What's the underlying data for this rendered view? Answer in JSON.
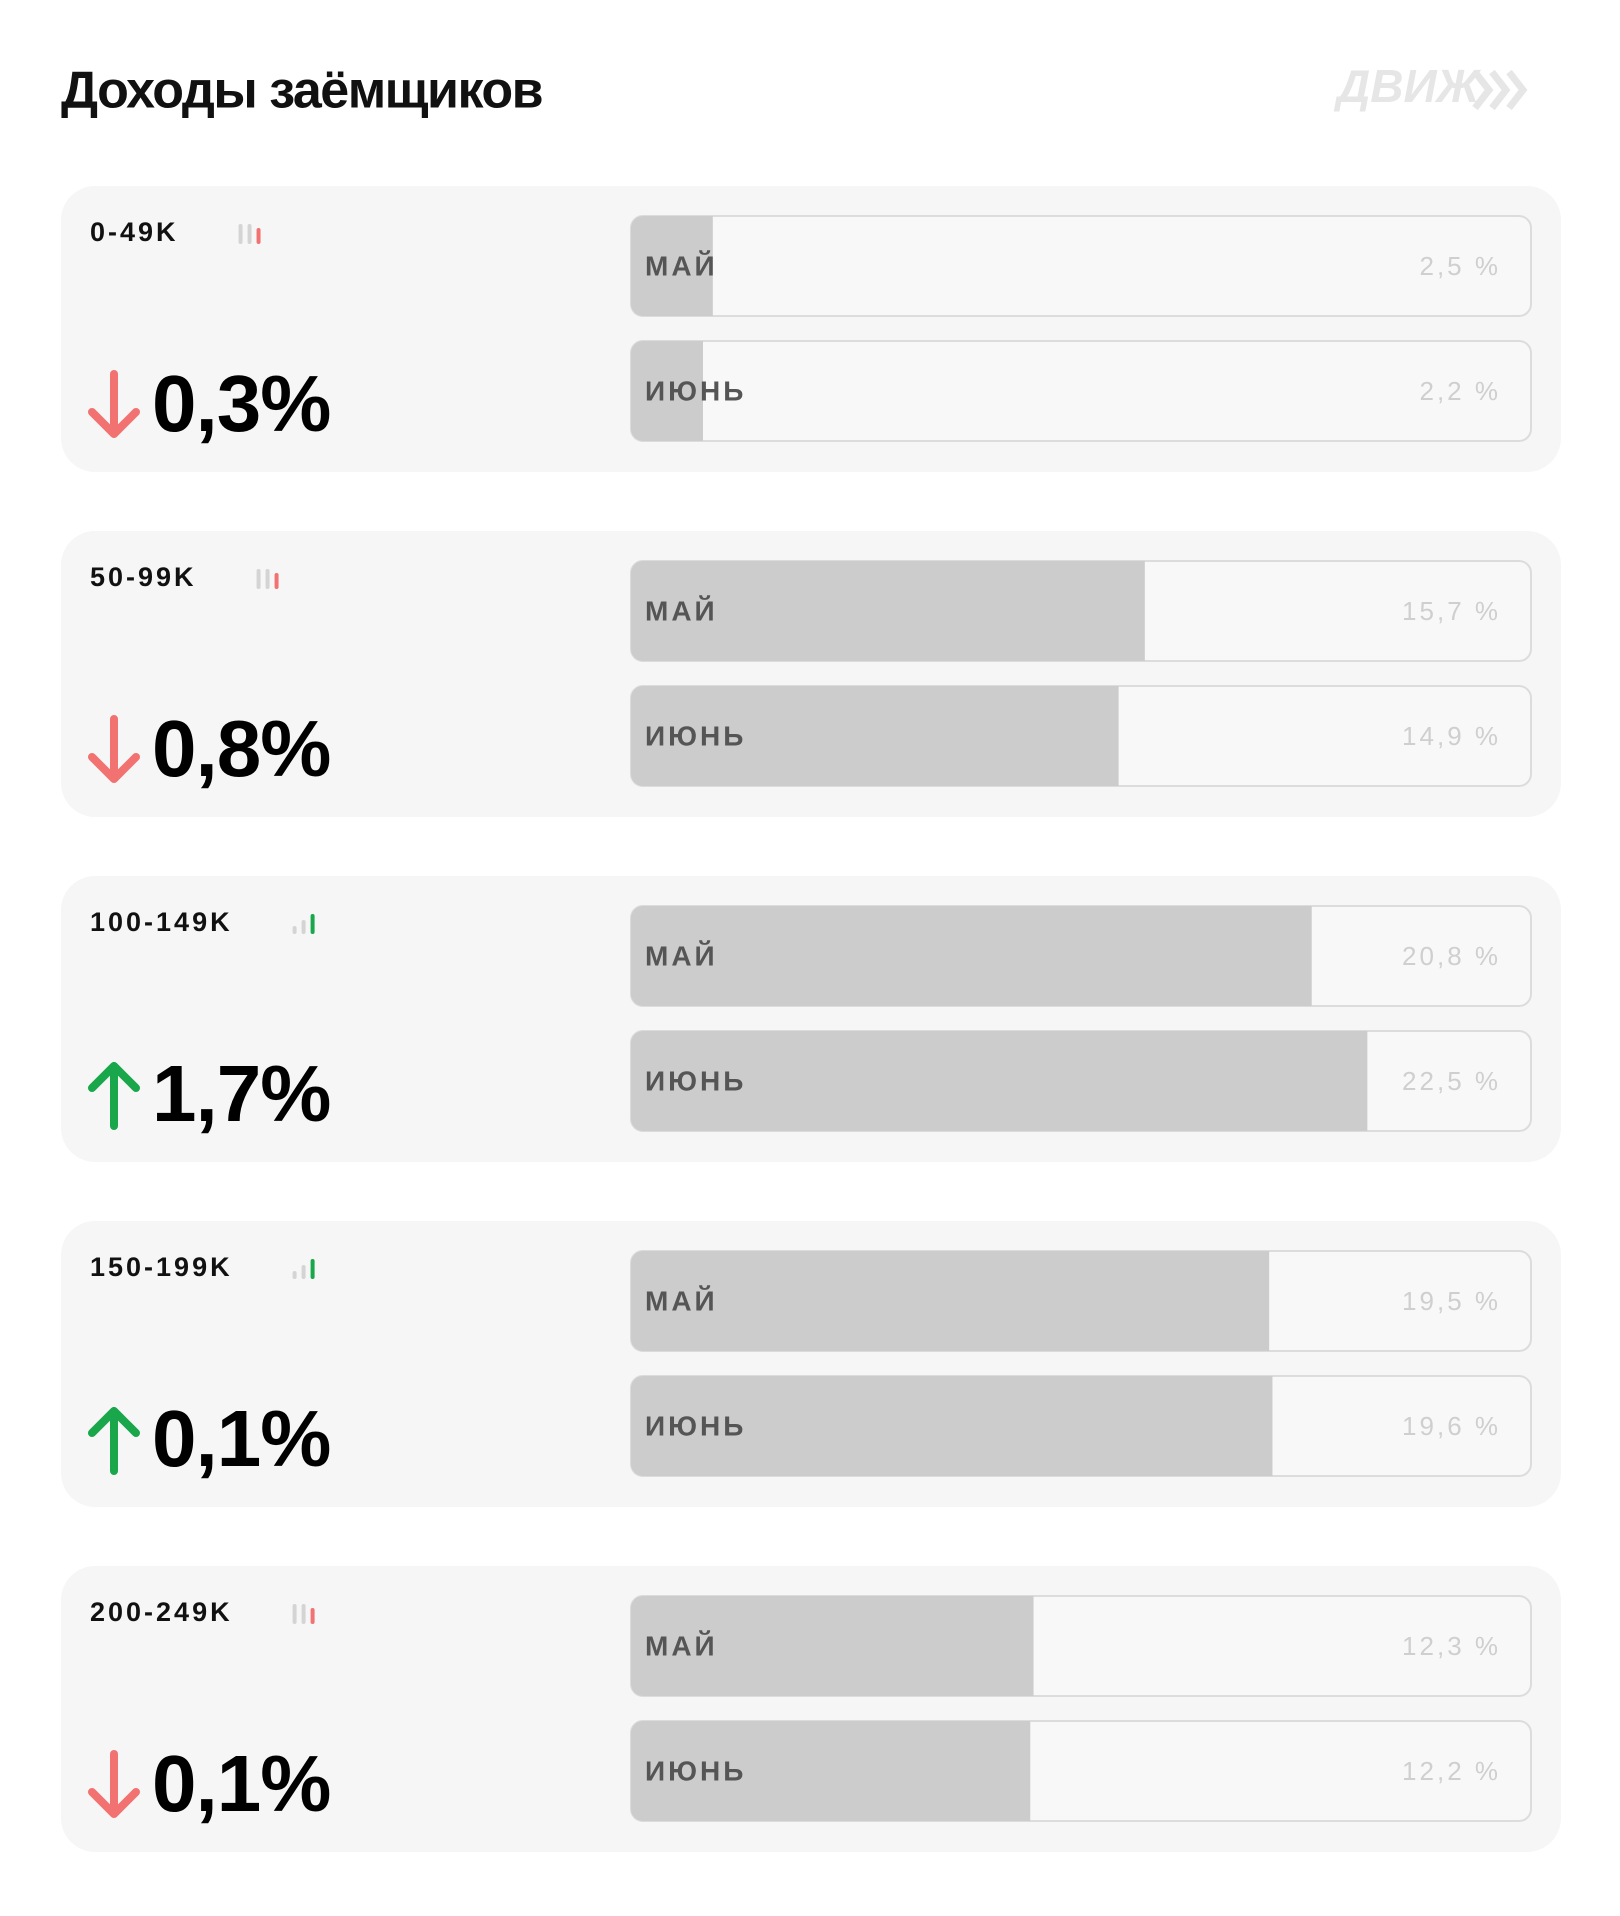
{
  "header": {
    "title": "Доходы заёмщиков",
    "logo": "ДВИЖ"
  },
  "chart_data": [
    {
      "type": "bar",
      "title": "0-49K",
      "change": "0,3%",
      "trend": "down",
      "categories": [
        "МАЙ",
        "ИЮНЬ"
      ],
      "values": [
        2.5,
        2.2
      ],
      "value_labels": [
        "2,5 %",
        "2,2 %"
      ],
      "xlim": [
        0,
        27.5
      ],
      "color": "#cccccc"
    },
    {
      "type": "bar",
      "title": "50-99K",
      "change": "0,8%",
      "trend": "down",
      "categories": [
        "МАЙ",
        "ИЮНЬ"
      ],
      "values": [
        15.7,
        14.9
      ],
      "value_labels": [
        "15,7 %",
        "14,9 %"
      ],
      "xlim": [
        0,
        27.5
      ],
      "color": "#cccccc"
    },
    {
      "type": "bar",
      "title": "100-149K",
      "change": "1,7%",
      "trend": "up",
      "categories": [
        "МАЙ",
        "ИЮНЬ"
      ],
      "values": [
        20.8,
        22.5
      ],
      "value_labels": [
        "20,8 %",
        "22,5 %"
      ],
      "xlim": [
        0,
        27.5
      ],
      "color": "#cccccc"
    },
    {
      "type": "bar",
      "title": "150-199K",
      "change": "0,1%",
      "trend": "up",
      "categories": [
        "МАЙ",
        "ИЮНЬ"
      ],
      "values": [
        19.5,
        19.6
      ],
      "value_labels": [
        "19,5 %",
        "19,6 %"
      ],
      "xlim": [
        0,
        27.5
      ],
      "color": "#cccccc"
    },
    {
      "type": "bar",
      "title": "200-249K",
      "change": "0,1%",
      "trend": "down",
      "categories": [
        "МАЙ",
        "ИЮНЬ"
      ],
      "values": [
        12.3,
        12.2
      ],
      "value_labels": [
        "12,3 %",
        "12,2 %"
      ],
      "xlim": [
        0,
        27.5
      ],
      "color": "#cccccc"
    }
  ]
}
